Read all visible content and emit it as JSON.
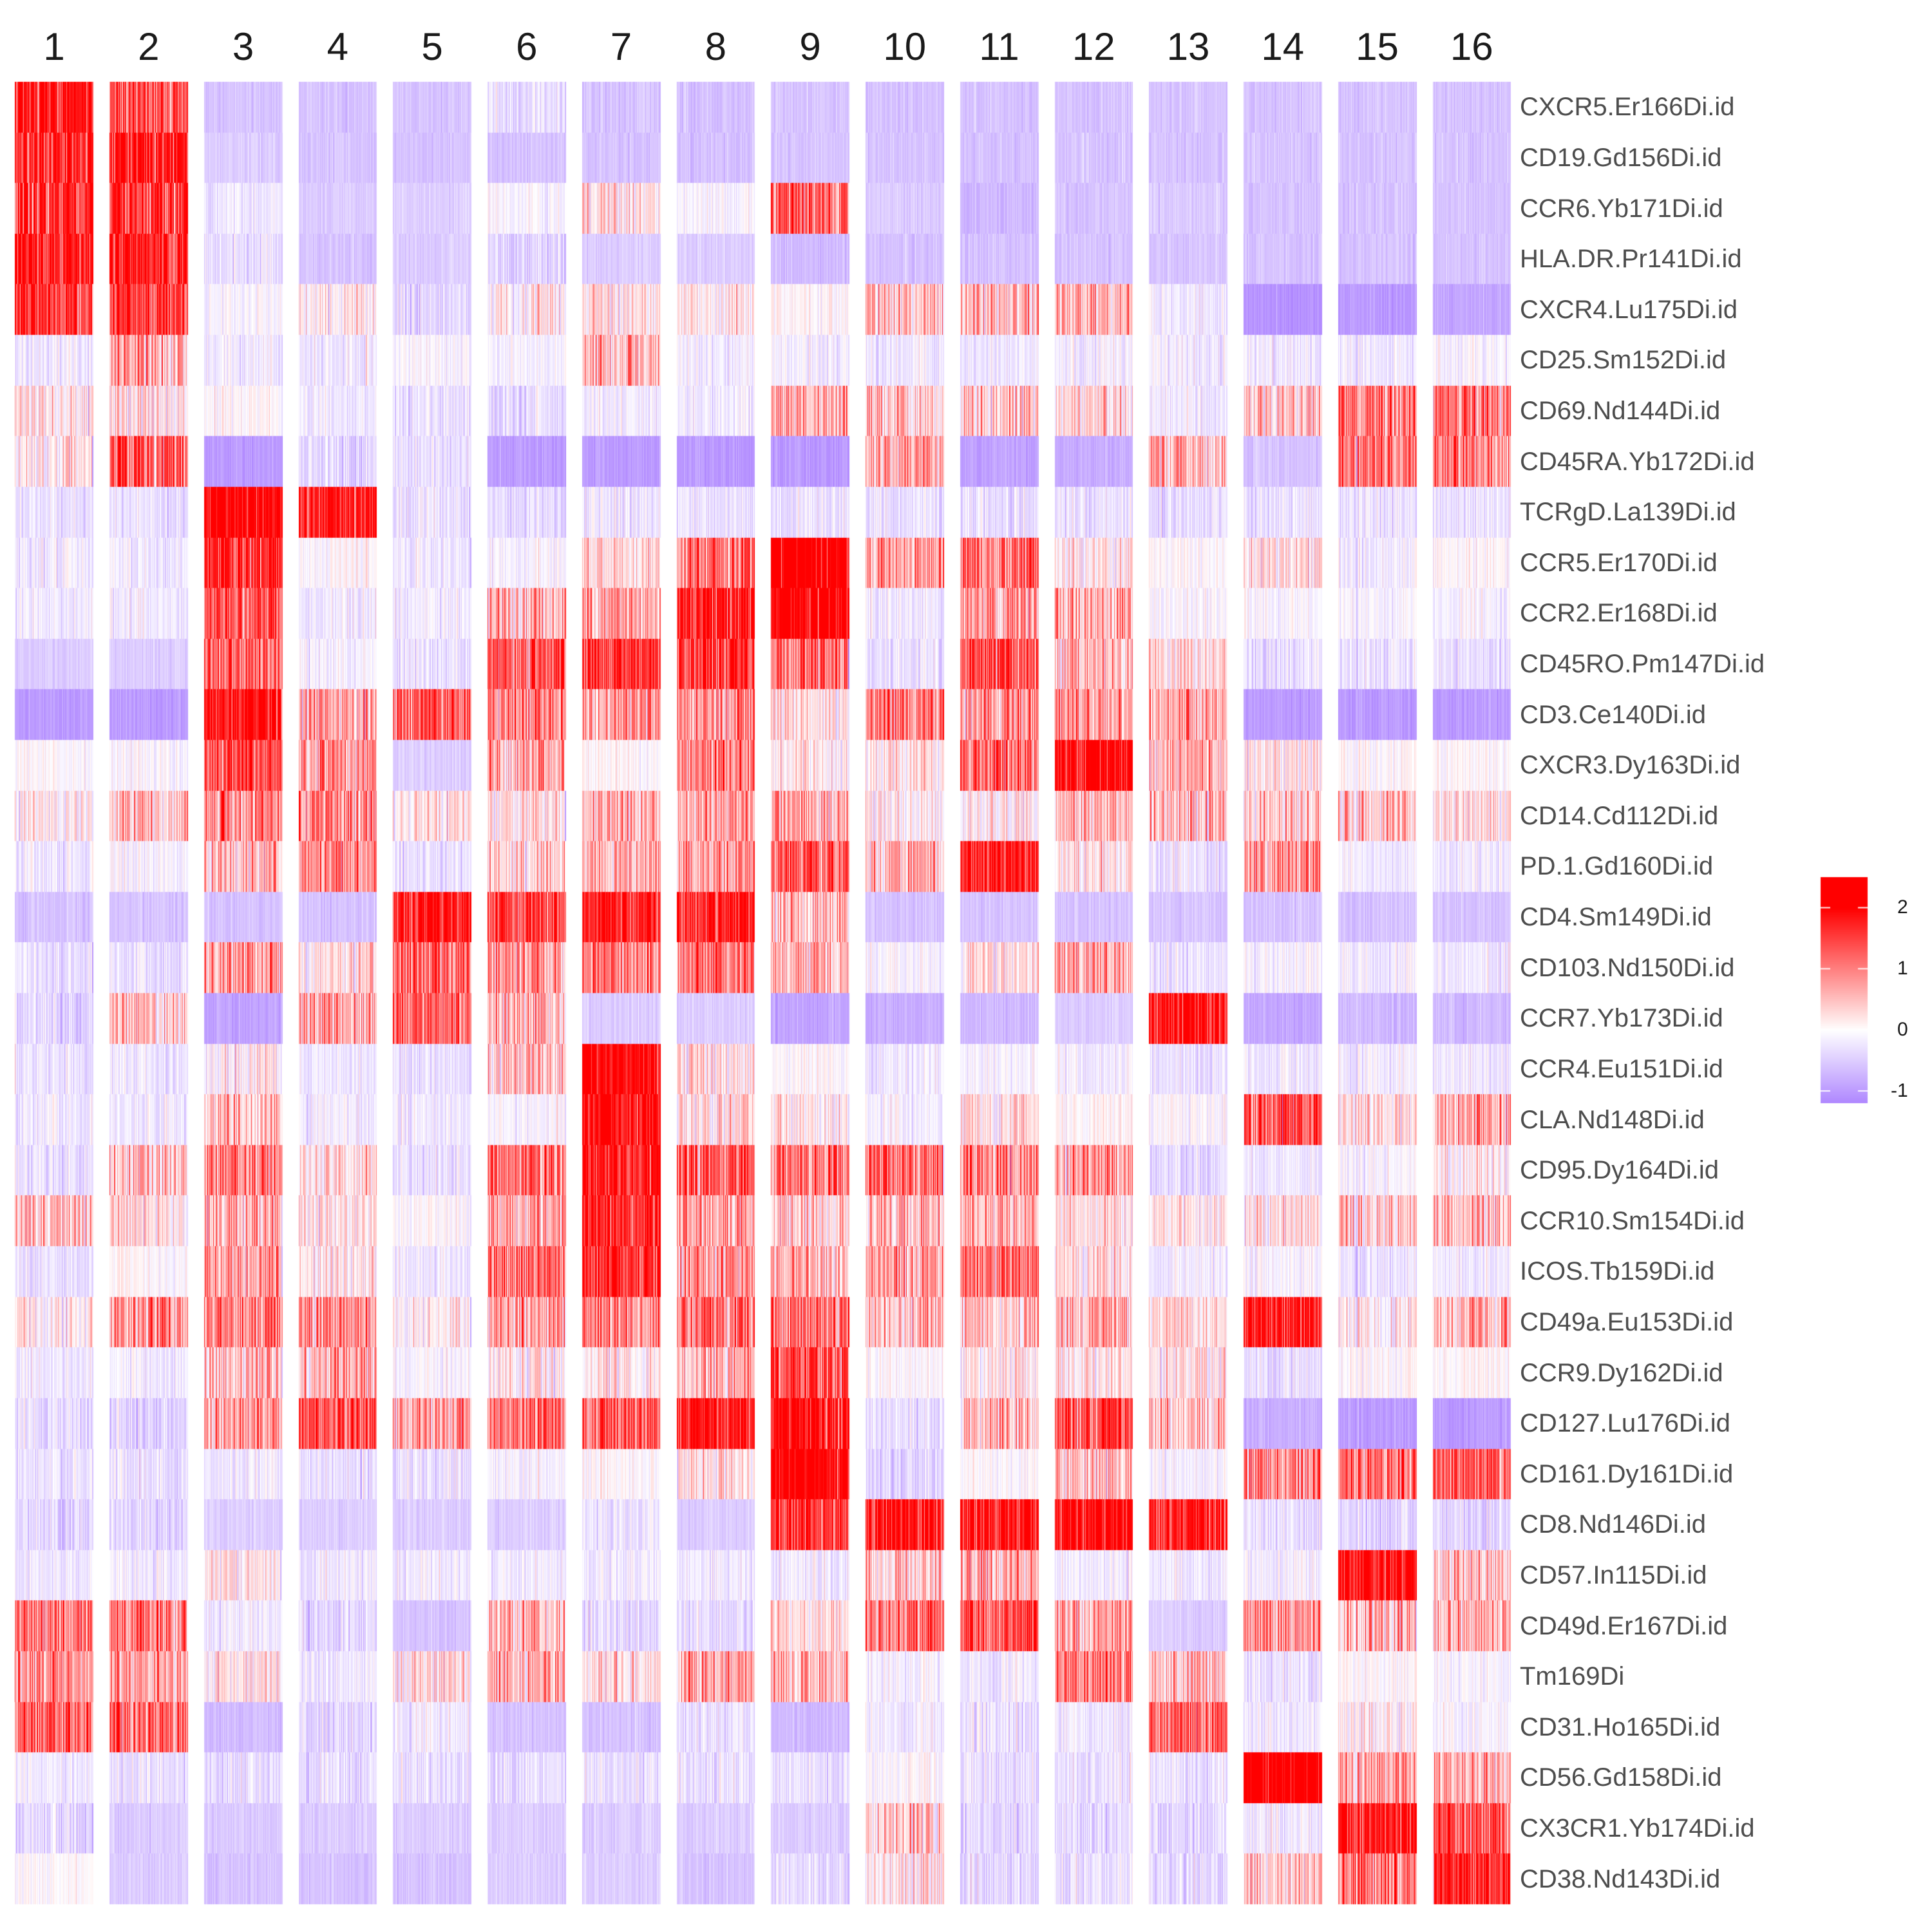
{
  "chart_data": {
    "type": "heatmap",
    "title": "",
    "xlabel": "",
    "ylabel": "",
    "clusters": [
      "1",
      "2",
      "3",
      "4",
      "5",
      "6",
      "7",
      "8",
      "9",
      "10",
      "11",
      "12",
      "13",
      "14",
      "15",
      "16"
    ],
    "markers": [
      "CXCR5.Er166Di.id",
      "CD19.Gd156Di.id",
      "CCR6.Yb171Di.id",
      "HLA.DR.Pr141Di.id",
      "CXCR4.Lu175Di.id",
      "CD25.Sm152Di.id",
      "CD69.Nd144Di.id",
      "CD45RA.Yb172Di.id",
      "TCRgD.La139Di.id",
      "CCR5.Er170Di.id",
      "CCR2.Er168Di.id",
      "CD45RO.Pm147Di.id",
      "CD3.Ce140Di.id",
      "CXCR3.Dy163Di.id",
      "CD14.Cd112Di.id",
      "PD.1.Gd160Di.id",
      "CD4.Sm149Di.id",
      "CD103.Nd150Di.id",
      "CCR7.Yb173Di.id",
      "CCR4.Eu151Di.id",
      "CLA.Nd148Di.id",
      "CD95.Dy164Di.id",
      "CCR10.Sm154Di.id",
      "ICOS.Tb159Di.id",
      "CD49a.Eu153Di.id",
      "CCR9.Dy162Di.id",
      "CD127.Lu176Di.id",
      "CD161.Dy161Di.id",
      "CD8.Nd146Di.id",
      "CD57.In115Di.id",
      "CD49d.Er167Di.id",
      "Tm169Di",
      "CD31.Ho165Di.id",
      "CD56.Gd158Di.id",
      "CX3CR1.Yb174Di.id",
      "CD38.Nd143Di.id"
    ],
    "value_description": "Estimated mean scaled expression (z-score) per marker (rows) and cluster (columns); each cell is rendered as many single-cell stripes around this mean",
    "mean_values": [
      [
        1.9,
        1.2,
        -0.6,
        -0.6,
        -0.6,
        -0.3,
        -0.6,
        -0.6,
        -0.6,
        -0.6,
        -0.6,
        -0.6,
        -0.6,
        -0.6,
        -0.6,
        -0.6
      ],
      [
        1.8,
        2.0,
        -0.5,
        -0.6,
        -0.6,
        -0.6,
        -0.6,
        -0.6,
        -0.6,
        -0.6,
        -0.6,
        -0.6,
        -0.6,
        -0.6,
        -0.6,
        -0.6
      ],
      [
        1.7,
        1.4,
        -0.2,
        -0.5,
        -0.5,
        -0.1,
        0.1,
        -0.1,
        1.1,
        -0.5,
        -0.7,
        -0.6,
        -0.5,
        -0.6,
        -0.6,
        -0.6
      ],
      [
        1.9,
        1.8,
        -0.3,
        -0.6,
        -0.5,
        -0.4,
        -0.5,
        -0.5,
        -0.7,
        -0.6,
        -0.6,
        -0.6,
        -0.6,
        -0.6,
        -0.6,
        -0.6
      ],
      [
        1.5,
        1.4,
        -0.1,
        0.1,
        -0.4,
        0.1,
        0.2,
        0.1,
        0.0,
        0.4,
        0.4,
        0.4,
        -0.2,
        -1.1,
        -1.0,
        -0.9
      ],
      [
        -0.2,
        0.5,
        -0.2,
        -0.2,
        -0.1,
        -0.1,
        0.3,
        -0.2,
        -0.2,
        -0.2,
        -0.2,
        -0.2,
        -0.2,
        -0.2,
        -0.2,
        -0.1
      ],
      [
        0.2,
        0.2,
        0.0,
        -0.2,
        -0.3,
        -0.3,
        -0.2,
        -0.2,
        0.5,
        0.3,
        0.3,
        0.2,
        -0.2,
        0.3,
        0.9,
        0.9
      ],
      [
        0.1,
        1.2,
        -1.0,
        -0.4,
        -0.3,
        -1.0,
        -1.0,
        -1.0,
        -1.0,
        0.6,
        -0.9,
        -0.8,
        0.5,
        -0.6,
        0.9,
        0.9
      ],
      [
        -0.3,
        -0.3,
        2.5,
        1.8,
        -0.3,
        -0.3,
        -0.3,
        -0.3,
        -0.3,
        -0.3,
        -0.3,
        -0.3,
        -0.3,
        -0.3,
        -0.3,
        -0.3
      ],
      [
        -0.2,
        -0.2,
        1.6,
        0.0,
        -0.2,
        -0.1,
        0.2,
        1.0,
        2.5,
        0.6,
        1.0,
        0.1,
        0.0,
        0.2,
        -0.2,
        0.0
      ],
      [
        -0.2,
        -0.2,
        1.2,
        -0.2,
        -0.2,
        0.4,
        0.5,
        1.9,
        2.5,
        -0.2,
        0.6,
        0.4,
        -0.1,
        -0.1,
        -0.1,
        -0.1
      ],
      [
        -0.5,
        -0.5,
        1.0,
        -0.1,
        -0.3,
        1.2,
        1.6,
        1.6,
        0.9,
        -0.3,
        1.3,
        0.3,
        0.2,
        -0.3,
        -0.3,
        -0.3
      ],
      [
        -1.0,
        -1.0,
        2.0,
        0.6,
        1.2,
        0.8,
        0.6,
        0.6,
        0.2,
        0.9,
        0.7,
        0.6,
        0.5,
        -1.0,
        -1.0,
        -1.0
      ],
      [
        0.0,
        -0.1,
        1.3,
        0.6,
        -0.5,
        0.6,
        0.0,
        0.8,
        0.1,
        0.2,
        1.1,
        2.1,
        0.4,
        0.1,
        0.0,
        0.0
      ],
      [
        0.1,
        0.3,
        0.8,
        0.8,
        0.2,
        0.2,
        0.5,
        0.5,
        0.5,
        0.1,
        0.1,
        0.4,
        0.3,
        0.3,
        0.3,
        0.2
      ],
      [
        -0.2,
        -0.1,
        0.4,
        0.8,
        -0.3,
        0.3,
        0.5,
        0.6,
        1.0,
        0.4,
        2.0,
        0.1,
        -0.3,
        0.6,
        -0.2,
        -0.2
      ],
      [
        -0.6,
        -0.6,
        -0.6,
        -0.6,
        1.8,
        1.5,
        1.8,
        1.8,
        0.3,
        -0.6,
        -0.6,
        -0.6,
        -0.6,
        -0.6,
        -0.6,
        -0.6
      ],
      [
        -0.3,
        -0.3,
        0.6,
        0.2,
        1.1,
        0.7,
        0.9,
        0.9,
        0.4,
        -0.1,
        0.2,
        0.5,
        -0.3,
        -0.1,
        -0.2,
        -0.2
      ],
      [
        -0.4,
        0.3,
        -0.9,
        0.4,
        1.1,
        0.4,
        -0.5,
        -0.5,
        -0.9,
        -0.8,
        -0.7,
        -0.5,
        2.0,
        -0.9,
        -0.7,
        -0.7
      ],
      [
        -0.3,
        -0.2,
        0.1,
        -0.2,
        -0.3,
        0.3,
        2.2,
        0.2,
        0.0,
        -0.2,
        -0.1,
        -0.2,
        -0.3,
        -0.2,
        -0.2,
        -0.2
      ],
      [
        -0.2,
        -0.2,
        0.3,
        -0.2,
        -0.2,
        -0.1,
        2.0,
        0.2,
        0.1,
        -0.1,
        0.2,
        0.0,
        -0.1,
        1.2,
        0.2,
        0.5
      ],
      [
        -0.3,
        0.3,
        0.9,
        0.2,
        -0.3,
        1.0,
        1.8,
        1.2,
        0.9,
        1.0,
        0.8,
        0.6,
        -0.4,
        -0.2,
        -0.1,
        0.1
      ],
      [
        0.3,
        0.2,
        0.4,
        0.2,
        0.0,
        0.6,
        1.6,
        0.5,
        0.3,
        0.3,
        0.4,
        0.2,
        0.1,
        0.2,
        0.3,
        0.3
      ],
      [
        -0.3,
        0.0,
        0.7,
        0.2,
        -0.2,
        1.0,
        1.7,
        0.7,
        0.4,
        0.6,
        1.0,
        0.2,
        -0.2,
        -0.1,
        -0.3,
        -0.2
      ],
      [
        0.1,
        0.7,
        0.9,
        0.7,
        0.1,
        0.6,
        0.8,
        0.8,
        1.0,
        0.3,
        0.3,
        0.4,
        0.2,
        1.8,
        0.1,
        0.4
      ],
      [
        -0.2,
        -0.2,
        0.3,
        0.4,
        -0.1,
        0.2,
        0.1,
        0.3,
        1.3,
        0.0,
        0.1,
        0.1,
        0.2,
        -0.3,
        0.0,
        0.0
      ],
      [
        -0.3,
        -0.4,
        0.5,
        1.2,
        0.5,
        1.1,
        1.0,
        1.8,
        2.0,
        -0.3,
        0.4,
        1.3,
        0.3,
        -0.8,
        -1.0,
        -1.0
      ],
      [
        -0.3,
        -0.3,
        -0.2,
        -0.3,
        -0.3,
        -0.1,
        0.0,
        0.2,
        2.4,
        -0.4,
        0.0,
        0.3,
        -0.1,
        0.8,
        1.0,
        1.2
      ],
      [
        -0.4,
        -0.4,
        -0.5,
        -0.5,
        -0.5,
        -0.5,
        -0.3,
        -0.5,
        1.4,
        2.1,
        2.0,
        2.1,
        1.8,
        -0.3,
        -0.4,
        -0.4
      ],
      [
        -0.2,
        -0.2,
        0.1,
        -0.2,
        -0.2,
        -0.2,
        -0.2,
        -0.2,
        -0.2,
        0.4,
        0.4,
        -0.2,
        -0.2,
        -0.2,
        2.0,
        0.3
      ],
      [
        0.9,
        1.0,
        -0.2,
        -0.4,
        -0.6,
        0.4,
        -0.4,
        -0.3,
        0.2,
        1.1,
        1.3,
        0.6,
        -0.5,
        0.7,
        0.3,
        0.5
      ],
      [
        0.7,
        0.5,
        0.2,
        -0.2,
        0.2,
        0.6,
        0.2,
        0.5,
        0.4,
        -0.1,
        -0.2,
        0.8,
        0.3,
        -0.3,
        0.0,
        -0.1
      ],
      [
        1.2,
        1.0,
        -0.7,
        -0.4,
        -0.2,
        -0.6,
        -0.6,
        -0.3,
        -0.7,
        -0.2,
        -0.3,
        -0.2,
        1.0,
        -0.2,
        0.1,
        -0.1
      ],
      [
        -0.2,
        -0.3,
        -0.3,
        -0.3,
        -0.3,
        -0.3,
        -0.3,
        -0.3,
        -0.3,
        0.0,
        -0.3,
        -0.3,
        -0.3,
        2.5,
        0.6,
        0.5
      ],
      [
        -0.4,
        -0.5,
        -0.5,
        -0.5,
        -0.5,
        -0.5,
        -0.5,
        -0.5,
        -0.5,
        0.3,
        -0.4,
        -0.4,
        -0.4,
        -0.2,
        1.8,
        1.2
      ],
      [
        0.0,
        -0.5,
        -0.6,
        -0.6,
        -0.6,
        -0.5,
        -0.5,
        -0.6,
        -0.4,
        0.2,
        -0.4,
        -0.3,
        -0.4,
        0.3,
        0.9,
        1.8
      ]
    ],
    "color_scale": {
      "low_color": "#af87ff",
      "mid_color": "#ffffff",
      "high_color": "#ff0000",
      "mid_value": 0,
      "limits": [
        -1.2,
        2.5
      ],
      "legend_ticks": [
        "2",
        "1",
        "0",
        "-1"
      ],
      "legend_tick_values": [
        2,
        1,
        0,
        -1
      ],
      "legend_placement": "right"
    },
    "grid": false,
    "legend": "right"
  }
}
